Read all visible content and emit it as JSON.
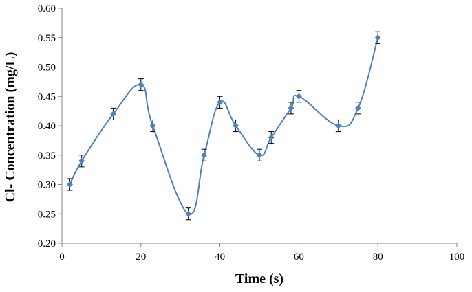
{
  "chart_data": {
    "type": "line",
    "title": "",
    "xlabel": "Time (s)",
    "ylabel": "Cl- Concentration (mg/L)",
    "xlim": [
      0,
      100
    ],
    "ylim": [
      0.2,
      0.6
    ],
    "x_ticks": [
      0,
      20,
      40,
      60,
      80,
      100
    ],
    "y_ticks": [
      0.2,
      0.25,
      0.3,
      0.35,
      0.4,
      0.45,
      0.5,
      0.55,
      0.6
    ],
    "x_tick_labels": [
      "0",
      "20",
      "40",
      "60",
      "80",
      "100"
    ],
    "y_tick_labels": [
      "0.20",
      "0.25",
      "0.30",
      "0.35",
      "0.40",
      "0.45",
      "0.50",
      "0.55",
      "0.60"
    ],
    "grid": false,
    "legend": "none",
    "smooth": true,
    "series": [
      {
        "color": "#4F81BD",
        "marker": "diamond",
        "points": [
          {
            "x": 2,
            "y": 0.3,
            "err": 0.01
          },
          {
            "x": 5,
            "y": 0.34,
            "err": 0.01
          },
          {
            "x": 13,
            "y": 0.42,
            "err": 0.01
          },
          {
            "x": 20,
            "y": 0.47,
            "err": 0.01
          },
          {
            "x": 23,
            "y": 0.4,
            "err": 0.01
          },
          {
            "x": 32,
            "y": 0.25,
            "err": 0.01
          },
          {
            "x": 36,
            "y": 0.35,
            "err": 0.01
          },
          {
            "x": 40,
            "y": 0.44,
            "err": 0.01
          },
          {
            "x": 44,
            "y": 0.4,
            "err": 0.01
          },
          {
            "x": 50,
            "y": 0.35,
            "err": 0.01
          },
          {
            "x": 53,
            "y": 0.38,
            "err": 0.01
          },
          {
            "x": 58,
            "y": 0.43,
            "err": 0.01
          },
          {
            "x": 60,
            "y": 0.45,
            "err": 0.01
          },
          {
            "x": 70,
            "y": 0.4,
            "err": 0.01
          },
          {
            "x": 75,
            "y": 0.43,
            "err": 0.01
          },
          {
            "x": 80,
            "y": 0.55,
            "err": 0.01
          }
        ]
      }
    ]
  }
}
